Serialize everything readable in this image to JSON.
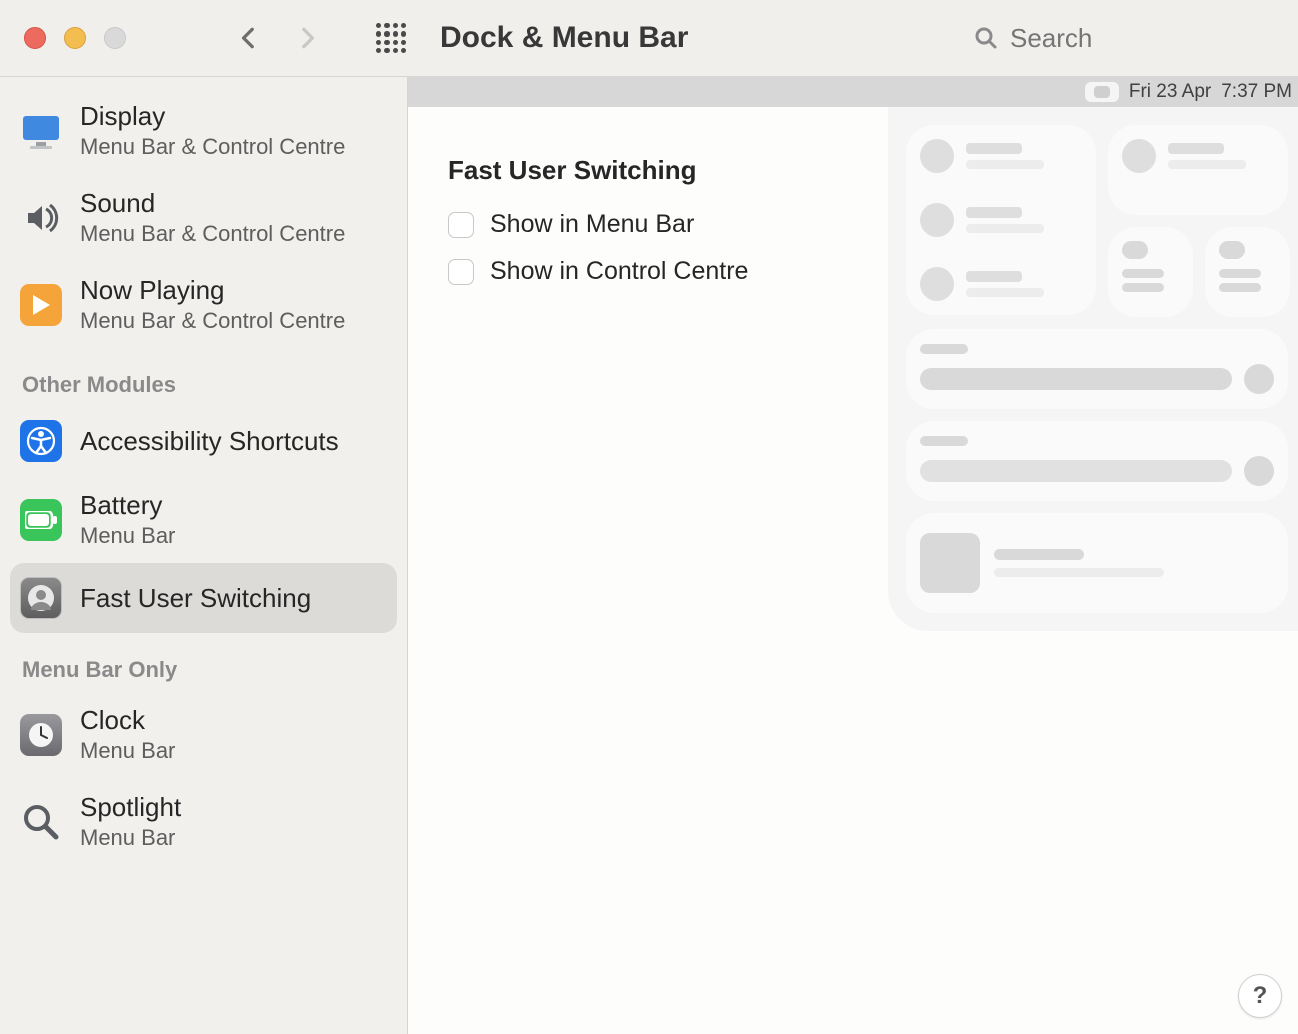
{
  "window": {
    "title": "Dock & Menu Bar",
    "search_placeholder": "Search"
  },
  "menubar_preview": {
    "date": "Fri 23 Apr",
    "time": "7:37 PM"
  },
  "sidebar": {
    "top_items": [
      {
        "name": "display",
        "label": "Display",
        "subtitle": "Menu Bar & Control Centre",
        "icon_bg": "#3f8ae0",
        "icon_type": "display"
      },
      {
        "name": "sound",
        "label": "Sound",
        "subtitle": "Menu Bar & Control Centre",
        "icon_bg": "transparent",
        "icon_type": "sound"
      },
      {
        "name": "now-playing",
        "label": "Now Playing",
        "subtitle": "Menu Bar & Control Centre",
        "icon_bg": "#f5a43a",
        "icon_type": "play"
      }
    ],
    "section1_title": "Other Modules",
    "other_items": [
      {
        "name": "accessibility",
        "label": "Accessibility Shortcuts",
        "subtitle": "",
        "icon_bg": "#1e73e8",
        "icon_type": "accessibility"
      },
      {
        "name": "battery",
        "label": "Battery",
        "subtitle": "Menu Bar",
        "icon_bg": "#39c559",
        "icon_type": "battery"
      },
      {
        "name": "fast-user",
        "label": "Fast User Switching",
        "subtitle": "",
        "icon_bg": "#6e6e6e",
        "icon_type": "user",
        "selected": true
      }
    ],
    "section2_title": "Menu Bar Only",
    "bar_items": [
      {
        "name": "clock",
        "label": "Clock",
        "subtitle": "Menu Bar",
        "icon_bg": "#7b7b7f",
        "icon_type": "clock"
      },
      {
        "name": "spotlight",
        "label": "Spotlight",
        "subtitle": "Menu Bar",
        "icon_bg": "transparent",
        "icon_type": "spotlight"
      }
    ]
  },
  "main": {
    "heading": "Fast User Switching",
    "options": [
      {
        "key": "menubar",
        "label": "Show in Menu Bar",
        "checked": false
      },
      {
        "key": "cc",
        "label": "Show in Control Centre",
        "checked": false
      }
    ]
  },
  "help_glyph": "?",
  "colors": {
    "bg": "#f2f0ed",
    "selected": "#dddbd8",
    "divider": "#d7d5d1",
    "cc_bg": "rgba(238,238,238,0.55)",
    "skeleton": "#dedede"
  }
}
